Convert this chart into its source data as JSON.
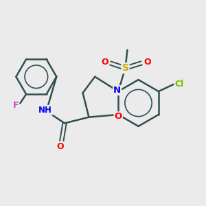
{
  "background_color": "#ebebeb",
  "bond_color": "#2f4f4f",
  "atom_colors": {
    "N": "#0000ee",
    "O": "#ff0000",
    "S": "#ccaa00",
    "Cl": "#7cba00",
    "F": "#cc44cc",
    "H": "#446677",
    "C": "#2f4f4f"
  },
  "figsize": [
    3.0,
    3.0
  ],
  "dpi": 100
}
